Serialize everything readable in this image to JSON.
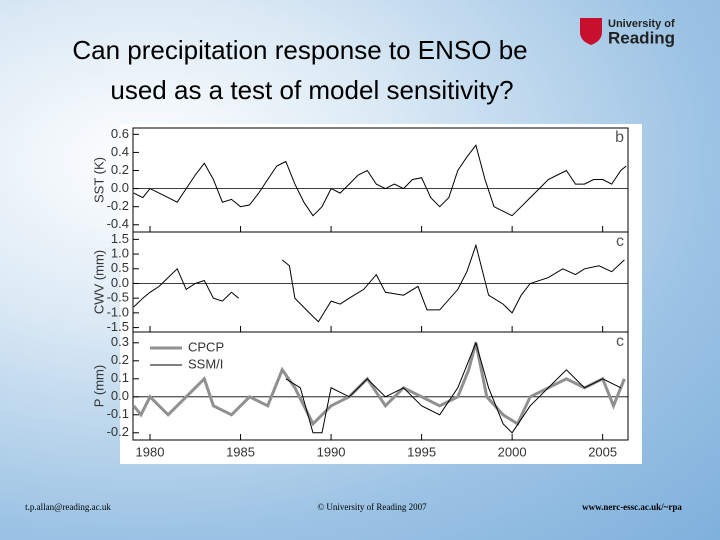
{
  "slide": {
    "title": [
      "Can precipitation response to ENSO be",
      "used as a test of model sensitivity?"
    ],
    "logo": [
      "University of",
      "Reading"
    ],
    "footer": [
      "t.p.allan@reading.ac.uk",
      "© University of Reading 2007",
      "www.nerc-essc.ac.uk/~rpa"
    ]
  },
  "chart_data": [
    {
      "type": "line",
      "panel_label": "b",
      "ylabel": "SST (K)",
      "xlim": [
        1979.06,
        2006.4
      ],
      "xticks": [
        1980,
        1985,
        1990,
        1995,
        2000,
        2005
      ],
      "ylim": [
        -0.48,
        0.67
      ],
      "yticks": [
        0.6,
        0.4,
        0.2,
        {
          "value": 0,
          "label": "0.0"
        },
        -0.2,
        -0.4
      ],
      "series": [
        {
          "color": "#000000",
          "x": [
            1979.1,
            1979.6,
            1980.0,
            1980.5,
            1981.0,
            1981.5,
            1982.0,
            1982.5,
            1983.0,
            1983.5,
            1984.0,
            1984.5,
            1985.0,
            1985.5,
            1986.0,
            1986.5,
            1987.0,
            1987.5,
            1988.0,
            1988.5,
            1989.0,
            1989.5,
            1990.0,
            1990.5,
            1991.0,
            1991.5,
            1992.0,
            1992.5,
            1993.0,
            1993.5,
            1994.0,
            1994.5,
            1995.0,
            1995.5,
            1996.0,
            1996.5,
            1997.0,
            1997.5,
            1998.0,
            1998.5,
            1999.0,
            1999.5,
            2000.0,
            2000.5,
            2001.0,
            2001.5,
            2002.0,
            2002.5,
            2003.0,
            2003.5,
            2004.0,
            2004.5,
            2005.0,
            2005.5,
            2006.0,
            2006.3
          ],
          "values": [
            -0.05,
            -0.1,
            0.0,
            -0.05,
            -0.1,
            -0.15,
            0.0,
            0.15,
            0.28,
            0.1,
            -0.15,
            -0.12,
            -0.2,
            -0.18,
            -0.05,
            0.1,
            0.25,
            0.3,
            0.05,
            -0.15,
            -0.3,
            -0.2,
            0.0,
            -0.05,
            0.05,
            0.15,
            0.2,
            0.05,
            0.0,
            0.05,
            0.0,
            0.1,
            0.12,
            -0.1,
            -0.2,
            -0.1,
            0.2,
            0.35,
            0.48,
            0.1,
            -0.2,
            -0.25,
            -0.3,
            -0.2,
            -0.1,
            0.0,
            0.1,
            0.15,
            0.2,
            0.05,
            0.05,
            0.1,
            0.1,
            0.05,
            0.2,
            0.25
          ]
        }
      ]
    },
    {
      "type": "line",
      "panel_label": "c",
      "ylabel": "CWV (mm)",
      "xlim": [
        1979.06,
        2006.4
      ],
      "xticks": [
        1980,
        1985,
        1990,
        1995,
        2000,
        2005
      ],
      "ylim": [
        -1.65,
        1.75
      ],
      "yticks": [
        1.5,
        {
          "value": 1,
          "label": "1.0"
        },
        0.5,
        {
          "value": 0,
          "label": "0.0"
        },
        -0.5,
        {
          "value": -1,
          "label": "-1.0"
        },
        -1.5
      ],
      "series": [
        {
          "color": "#000000",
          "x": [
            1979.1,
            1979.6,
            1980.0,
            1980.5,
            1981.0,
            1981.5,
            1982.0,
            1982.5,
            1983.0,
            1983.5,
            1984.0,
            1984.5,
            1984.9,
            1986.0,
            1987.3,
            1987.7,
            1988.0,
            1988.8,
            1989.3,
            1990.0,
            1990.5,
            1991.0,
            1991.8,
            1992.5,
            1993.0,
            1994.0,
            1994.8,
            1995.3,
            1996.0,
            1997.0,
            1997.5,
            1998.0,
            1998.7,
            1999.5,
            2000.0,
            2000.5,
            2001.0,
            2002.0,
            2002.8,
            2003.5,
            2004.0,
            2004.8,
            2005.5,
            2006.2
          ],
          "values": [
            -0.8,
            -0.5,
            -0.3,
            -0.1,
            0.2,
            0.5,
            -0.2,
            0.0,
            0.1,
            -0.5,
            -0.6,
            -0.3,
            -0.5,
            null,
            0.8,
            0.6,
            -0.5,
            -1.0,
            -1.3,
            -0.6,
            -0.7,
            -0.5,
            -0.2,
            0.3,
            -0.3,
            -0.4,
            -0.1,
            -0.9,
            -0.9,
            -0.2,
            0.4,
            1.3,
            -0.4,
            -0.7,
            -1.0,
            -0.4,
            0.0,
            0.2,
            0.5,
            0.3,
            0.5,
            0.6,
            0.4,
            0.8
          ]
        }
      ]
    },
    {
      "type": "line",
      "panel_label": "c",
      "ylabel": "P (mm)",
      "xlim": [
        1979.06,
        2006.4
      ],
      "xticks": [
        1980,
        1985,
        1990,
        1995,
        2000,
        2005
      ],
      "ylim": [
        -0.24,
        0.36
      ],
      "yticks": [
        0.3,
        0.2,
        0.1,
        {
          "value": 0,
          "label": "0.0"
        },
        -0.1,
        -0.2
      ],
      "series": [
        {
          "name": "CPCP",
          "color": "#909090",
          "x": [
            1979.1,
            1979.5,
            1980.0,
            1981.0,
            1982.0,
            1983.0,
            1983.5,
            1984.5,
            1985.5,
            1986.5,
            1987.3,
            1988.0,
            1989.0,
            1990.0,
            1991.0,
            1992.0,
            1993.0,
            1994.0,
            1995.0,
            1996.0,
            1997.0,
            1997.6,
            1998.0,
            1998.6,
            1999.5,
            2000.3,
            2001.0,
            2002.0,
            2003.0,
            2004.0,
            2005.0,
            2005.6,
            2006.2
          ],
          "values": [
            -0.05,
            -0.1,
            0.0,
            -0.1,
            0.0,
            0.1,
            -0.05,
            -0.1,
            0.0,
            -0.05,
            0.15,
            0.05,
            -0.15,
            -0.05,
            0.0,
            0.1,
            -0.05,
            0.05,
            0.0,
            -0.05,
            0.0,
            0.15,
            0.3,
            0.0,
            -0.1,
            -0.15,
            0.0,
            0.05,
            0.1,
            0.05,
            0.1,
            -0.05,
            0.1
          ]
        },
        {
          "name": "SSM/I",
          "color": "#000000",
          "x": [
            1987.5,
            1988.3,
            1989.0,
            1989.5,
            1990.0,
            1991.0,
            1992.0,
            1993.0,
            1994.0,
            1995.0,
            1996.0,
            1997.0,
            1998.0,
            1998.7,
            1999.5,
            2000.0,
            2001.0,
            2002.0,
            2003.0,
            2004.0,
            2005.0,
            2006.0
          ],
          "values": [
            0.1,
            0.05,
            -0.2,
            -0.2,
            0.05,
            0.0,
            0.1,
            0.0,
            0.05,
            -0.05,
            -0.1,
            0.05,
            0.3,
            0.05,
            -0.15,
            -0.2,
            -0.05,
            0.05,
            0.15,
            0.05,
            0.1,
            0.05
          ]
        }
      ]
    }
  ]
}
